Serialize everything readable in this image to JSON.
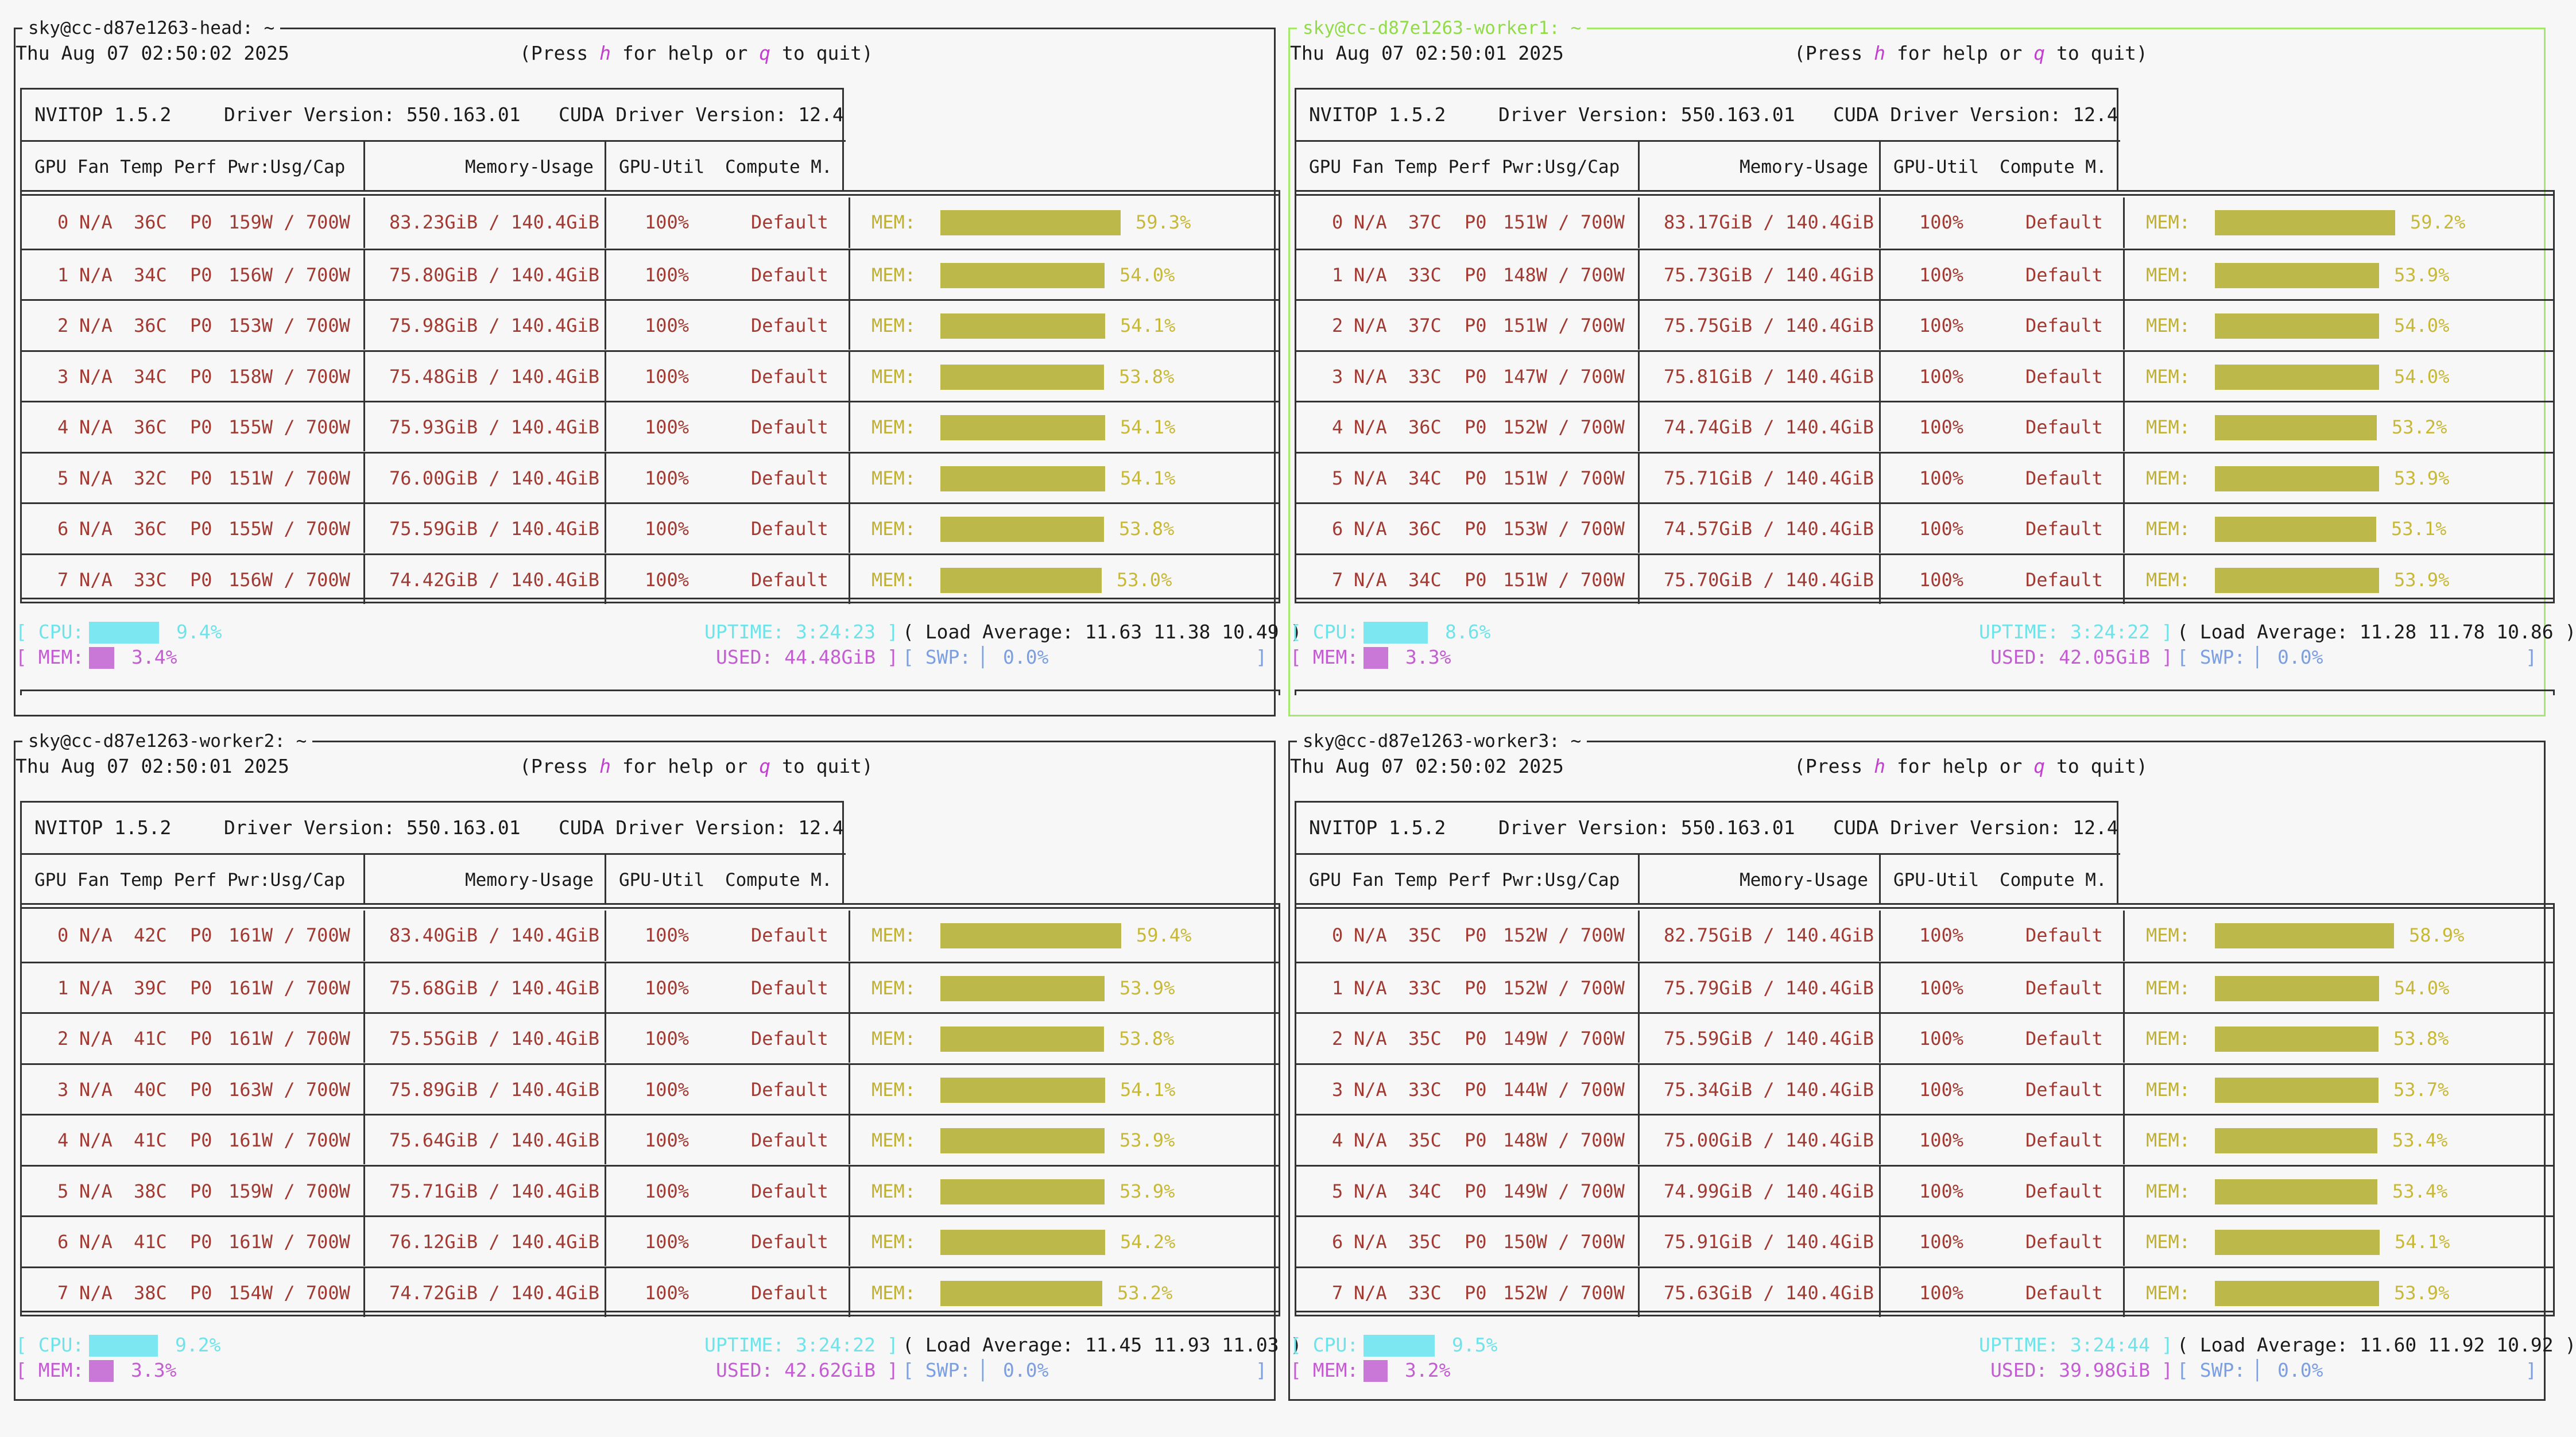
{
  "panes": [
    {
      "title": "sky@cc-d87e1263-head: ~",
      "date": "Thu Aug 07 02:50:02 2025",
      "help": {
        "pre": "(Press ",
        "k1": "h",
        "mid": " for help or ",
        "k2": "q",
        "post": " to quit)"
      },
      "nvitop": "NVITOP 1.5.2",
      "driver": "Driver Version: 550.163.01",
      "cuda": "CUDA Driver Version: 12.4",
      "cols": {
        "gpu": "GPU Fan Temp Perf Pwr:Usg/Cap",
        "mem": "Memory-Usage",
        "util": "GPU-Util",
        "compute": "Compute M."
      },
      "gpus": [
        {
          "idx": "0",
          "fan": "N/A",
          "temp": "36C",
          "perf": "P0",
          "pwr": "159W / 700W",
          "mem": "83.23GiB / 140.4GiB",
          "util": "100%",
          "mode": "Default",
          "memlbl": "MEM:",
          "pct": "59.3%",
          "frac": 0.593
        },
        {
          "idx": "1",
          "fan": "N/A",
          "temp": "34C",
          "perf": "P0",
          "pwr": "156W / 700W",
          "mem": "75.80GiB / 140.4GiB",
          "util": "100%",
          "mode": "Default",
          "memlbl": "MEM:",
          "pct": "54.0%",
          "frac": 0.54
        },
        {
          "idx": "2",
          "fan": "N/A",
          "temp": "36C",
          "perf": "P0",
          "pwr": "153W / 700W",
          "mem": "75.98GiB / 140.4GiB",
          "util": "100%",
          "mode": "Default",
          "memlbl": "MEM:",
          "pct": "54.1%",
          "frac": 0.541
        },
        {
          "idx": "3",
          "fan": "N/A",
          "temp": "34C",
          "perf": "P0",
          "pwr": "158W / 700W",
          "mem": "75.48GiB / 140.4GiB",
          "util": "100%",
          "mode": "Default",
          "memlbl": "MEM:",
          "pct": "53.8%",
          "frac": 0.538
        },
        {
          "idx": "4",
          "fan": "N/A",
          "temp": "36C",
          "perf": "P0",
          "pwr": "155W / 700W",
          "mem": "75.93GiB / 140.4GiB",
          "util": "100%",
          "mode": "Default",
          "memlbl": "MEM:",
          "pct": "54.1%",
          "frac": 0.541
        },
        {
          "idx": "5",
          "fan": "N/A",
          "temp": "32C",
          "perf": "P0",
          "pwr": "151W / 700W",
          "mem": "76.00GiB / 140.4GiB",
          "util": "100%",
          "mode": "Default",
          "memlbl": "MEM:",
          "pct": "54.1%",
          "frac": 0.541
        },
        {
          "idx": "6",
          "fan": "N/A",
          "temp": "36C",
          "perf": "P0",
          "pwr": "155W / 700W",
          "mem": "75.59GiB / 140.4GiB",
          "util": "100%",
          "mode": "Default",
          "memlbl": "MEM:",
          "pct": "53.8%",
          "frac": 0.538
        },
        {
          "idx": "7",
          "fan": "N/A",
          "temp": "33C",
          "perf": "P0",
          "pwr": "156W / 700W",
          "mem": "74.42GiB / 140.4GiB",
          "util": "100%",
          "mode": "Default",
          "memlbl": "MEM:",
          "pct": "53.0%",
          "frac": 0.53
        }
      ],
      "cpu": {
        "label": "[ CPU:",
        "pct": "9.4%",
        "frac": 0.094
      },
      "mem": {
        "label": "[ MEM:",
        "pct": "3.4%",
        "frac": 0.034
      },
      "uptime": "UPTIME: 3:24:23 ]",
      "load": "( Load Average: 11.63 11.38 10.49 )",
      "used": "USED: 44.48GiB ]",
      "swp": {
        "label": "[ SWP:",
        "pct": "0.0%",
        "close": "]"
      }
    },
    {
      "title": "sky@cc-d87e1263-worker1: ~",
      "date": "Thu Aug 07 02:50:01 2025",
      "help": {
        "pre": "(Press ",
        "k1": "h",
        "mid": " for help or ",
        "k2": "q",
        "post": " to quit)"
      },
      "nvitop": "NVITOP 1.5.2",
      "driver": "Driver Version: 550.163.01",
      "cuda": "CUDA Driver Version: 12.4",
      "cols": {
        "gpu": "GPU Fan Temp Perf Pwr:Usg/Cap",
        "mem": "Memory-Usage",
        "util": "GPU-Util",
        "compute": "Compute M."
      },
      "gpus": [
        {
          "idx": "0",
          "fan": "N/A",
          "temp": "37C",
          "perf": "P0",
          "pwr": "151W / 700W",
          "mem": "83.17GiB / 140.4GiB",
          "util": "100%",
          "mode": "Default",
          "memlbl": "MEM:",
          "pct": "59.2%",
          "frac": 0.592
        },
        {
          "idx": "1",
          "fan": "N/A",
          "temp": "33C",
          "perf": "P0",
          "pwr": "148W / 700W",
          "mem": "75.73GiB / 140.4GiB",
          "util": "100%",
          "mode": "Default",
          "memlbl": "MEM:",
          "pct": "53.9%",
          "frac": 0.539
        },
        {
          "idx": "2",
          "fan": "N/A",
          "temp": "37C",
          "perf": "P0",
          "pwr": "151W / 700W",
          "mem": "75.75GiB / 140.4GiB",
          "util": "100%",
          "mode": "Default",
          "memlbl": "MEM:",
          "pct": "54.0%",
          "frac": 0.54
        },
        {
          "idx": "3",
          "fan": "N/A",
          "temp": "33C",
          "perf": "P0",
          "pwr": "147W / 700W",
          "mem": "75.81GiB / 140.4GiB",
          "util": "100%",
          "mode": "Default",
          "memlbl": "MEM:",
          "pct": "54.0%",
          "frac": 0.54
        },
        {
          "idx": "4",
          "fan": "N/A",
          "temp": "36C",
          "perf": "P0",
          "pwr": "152W / 700W",
          "mem": "74.74GiB / 140.4GiB",
          "util": "100%",
          "mode": "Default",
          "memlbl": "MEM:",
          "pct": "53.2%",
          "frac": 0.532
        },
        {
          "idx": "5",
          "fan": "N/A",
          "temp": "34C",
          "perf": "P0",
          "pwr": "151W / 700W",
          "mem": "75.71GiB / 140.4GiB",
          "util": "100%",
          "mode": "Default",
          "memlbl": "MEM:",
          "pct": "53.9%",
          "frac": 0.539
        },
        {
          "idx": "6",
          "fan": "N/A",
          "temp": "36C",
          "perf": "P0",
          "pwr": "153W / 700W",
          "mem": "74.57GiB / 140.4GiB",
          "util": "100%",
          "mode": "Default",
          "memlbl": "MEM:",
          "pct": "53.1%",
          "frac": 0.531
        },
        {
          "idx": "7",
          "fan": "N/A",
          "temp": "34C",
          "perf": "P0",
          "pwr": "151W / 700W",
          "mem": "75.70GiB / 140.4GiB",
          "util": "100%",
          "mode": "Default",
          "memlbl": "MEM:",
          "pct": "53.9%",
          "frac": 0.539
        }
      ],
      "cpu": {
        "label": "[ CPU:",
        "pct": "8.6%",
        "frac": 0.086
      },
      "mem": {
        "label": "[ MEM:",
        "pct": "3.3%",
        "frac": 0.033
      },
      "uptime": "UPTIME: 3:24:22 ]",
      "load": "( Load Average: 11.28 11.78 10.86 )",
      "used": "USED: 42.05GiB ]",
      "swp": {
        "label": "[ SWP:",
        "pct": "0.0%",
        "close": "]"
      }
    },
    {
      "title": "sky@cc-d87e1263-worker2: ~",
      "date": "Thu Aug 07 02:50:01 2025",
      "help": {
        "pre": "(Press ",
        "k1": "h",
        "mid": " for help or ",
        "k2": "q",
        "post": " to quit)"
      },
      "nvitop": "NVITOP 1.5.2",
      "driver": "Driver Version: 550.163.01",
      "cuda": "CUDA Driver Version: 12.4",
      "cols": {
        "gpu": "GPU Fan Temp Perf Pwr:Usg/Cap",
        "mem": "Memory-Usage",
        "util": "GPU-Util",
        "compute": "Compute M."
      },
      "gpus": [
        {
          "idx": "0",
          "fan": "N/A",
          "temp": "42C",
          "perf": "P0",
          "pwr": "161W / 700W",
          "mem": "83.40GiB / 140.4GiB",
          "util": "100%",
          "mode": "Default",
          "memlbl": "MEM:",
          "pct": "59.4%",
          "frac": 0.594
        },
        {
          "idx": "1",
          "fan": "N/A",
          "temp": "39C",
          "perf": "P0",
          "pwr": "161W / 700W",
          "mem": "75.68GiB / 140.4GiB",
          "util": "100%",
          "mode": "Default",
          "memlbl": "MEM:",
          "pct": "53.9%",
          "frac": 0.539
        },
        {
          "idx": "2",
          "fan": "N/A",
          "temp": "41C",
          "perf": "P0",
          "pwr": "161W / 700W",
          "mem": "75.55GiB / 140.4GiB",
          "util": "100%",
          "mode": "Default",
          "memlbl": "MEM:",
          "pct": "53.8%",
          "frac": 0.538
        },
        {
          "idx": "3",
          "fan": "N/A",
          "temp": "40C",
          "perf": "P0",
          "pwr": "163W / 700W",
          "mem": "75.89GiB / 140.4GiB",
          "util": "100%",
          "mode": "Default",
          "memlbl": "MEM:",
          "pct": "54.1%",
          "frac": 0.541
        },
        {
          "idx": "4",
          "fan": "N/A",
          "temp": "41C",
          "perf": "P0",
          "pwr": "161W / 700W",
          "mem": "75.64GiB / 140.4GiB",
          "util": "100%",
          "mode": "Default",
          "memlbl": "MEM:",
          "pct": "53.9%",
          "frac": 0.539
        },
        {
          "idx": "5",
          "fan": "N/A",
          "temp": "38C",
          "perf": "P0",
          "pwr": "159W / 700W",
          "mem": "75.71GiB / 140.4GiB",
          "util": "100%",
          "mode": "Default",
          "memlbl": "MEM:",
          "pct": "53.9%",
          "frac": 0.539
        },
        {
          "idx": "6",
          "fan": "N/A",
          "temp": "41C",
          "perf": "P0",
          "pwr": "161W / 700W",
          "mem": "76.12GiB / 140.4GiB",
          "util": "100%",
          "mode": "Default",
          "memlbl": "MEM:",
          "pct": "54.2%",
          "frac": 0.542
        },
        {
          "idx": "7",
          "fan": "N/A",
          "temp": "38C",
          "perf": "P0",
          "pwr": "154W / 700W",
          "mem": "74.72GiB / 140.4GiB",
          "util": "100%",
          "mode": "Default",
          "memlbl": "MEM:",
          "pct": "53.2%",
          "frac": 0.532
        }
      ],
      "cpu": {
        "label": "[ CPU:",
        "pct": "9.2%",
        "frac": 0.092
      },
      "mem": {
        "label": "[ MEM:",
        "pct": "3.3%",
        "frac": 0.033
      },
      "uptime": "UPTIME: 3:24:22 ]",
      "load": "( Load Average: 11.45 11.93 11.03 )",
      "used": "USED: 42.62GiB ]",
      "swp": {
        "label": "[ SWP:",
        "pct": "0.0%",
        "close": "]"
      }
    },
    {
      "title": "sky@cc-d87e1263-worker3: ~",
      "date": "Thu Aug 07 02:50:02 2025",
      "help": {
        "pre": "(Press ",
        "k1": "h",
        "mid": " for help or ",
        "k2": "q",
        "post": " to quit)"
      },
      "nvitop": "NVITOP 1.5.2",
      "driver": "Driver Version: 550.163.01",
      "cuda": "CUDA Driver Version: 12.4",
      "cols": {
        "gpu": "GPU Fan Temp Perf Pwr:Usg/Cap",
        "mem": "Memory-Usage",
        "util": "GPU-Util",
        "compute": "Compute M."
      },
      "gpus": [
        {
          "idx": "0",
          "fan": "N/A",
          "temp": "35C",
          "perf": "P0",
          "pwr": "152W / 700W",
          "mem": "82.75GiB / 140.4GiB",
          "util": "100%",
          "mode": "Default",
          "memlbl": "MEM:",
          "pct": "58.9%",
          "frac": 0.589
        },
        {
          "idx": "1",
          "fan": "N/A",
          "temp": "33C",
          "perf": "P0",
          "pwr": "152W / 700W",
          "mem": "75.79GiB / 140.4GiB",
          "util": "100%",
          "mode": "Default",
          "memlbl": "MEM:",
          "pct": "54.0%",
          "frac": 0.54
        },
        {
          "idx": "2",
          "fan": "N/A",
          "temp": "35C",
          "perf": "P0",
          "pwr": "149W / 700W",
          "mem": "75.59GiB / 140.4GiB",
          "util": "100%",
          "mode": "Default",
          "memlbl": "MEM:",
          "pct": "53.8%",
          "frac": 0.538
        },
        {
          "idx": "3",
          "fan": "N/A",
          "temp": "33C",
          "perf": "P0",
          "pwr": "144W / 700W",
          "mem": "75.34GiB / 140.4GiB",
          "util": "100%",
          "mode": "Default",
          "memlbl": "MEM:",
          "pct": "53.7%",
          "frac": 0.537
        },
        {
          "idx": "4",
          "fan": "N/A",
          "temp": "35C",
          "perf": "P0",
          "pwr": "148W / 700W",
          "mem": "75.00GiB / 140.4GiB",
          "util": "100%",
          "mode": "Default",
          "memlbl": "MEM:",
          "pct": "53.4%",
          "frac": 0.534
        },
        {
          "idx": "5",
          "fan": "N/A",
          "temp": "34C",
          "perf": "P0",
          "pwr": "149W / 700W",
          "mem": "74.99GiB / 140.4GiB",
          "util": "100%",
          "mode": "Default",
          "memlbl": "MEM:",
          "pct": "53.4%",
          "frac": 0.534
        },
        {
          "idx": "6",
          "fan": "N/A",
          "temp": "35C",
          "perf": "P0",
          "pwr": "150W / 700W",
          "mem": "75.91GiB / 140.4GiB",
          "util": "100%",
          "mode": "Default",
          "memlbl": "MEM:",
          "pct": "54.1%",
          "frac": 0.541
        },
        {
          "idx": "7",
          "fan": "N/A",
          "temp": "33C",
          "perf": "P0",
          "pwr": "152W / 700W",
          "mem": "75.63GiB / 140.4GiB",
          "util": "100%",
          "mode": "Default",
          "memlbl": "MEM:",
          "pct": "53.9%",
          "frac": 0.539
        }
      ],
      "cpu": {
        "label": "[ CPU:",
        "pct": "9.5%",
        "frac": 0.095
      },
      "mem": {
        "label": "[ MEM:",
        "pct": "3.2%",
        "frac": 0.032
      },
      "uptime": "UPTIME: 3:24:44 ]",
      "load": "( Load Average: 11.60 11.92 10.92 )",
      "used": "USED: 39.98GiB ]",
      "swp": {
        "label": "[ SWP:",
        "pct": "0.0%",
        "close": "]"
      }
    }
  ]
}
